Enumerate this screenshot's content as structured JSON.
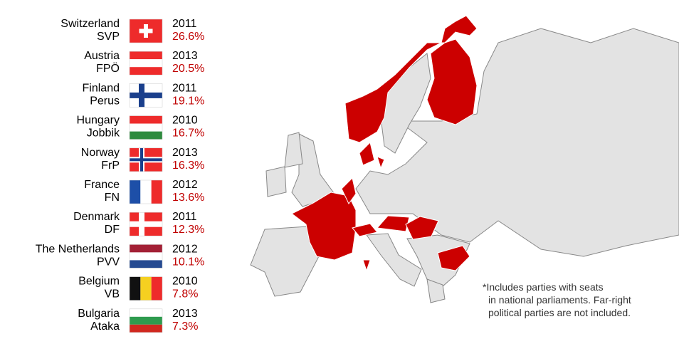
{
  "entries": [
    {
      "country": "Switzerland",
      "party": "SVP",
      "year": "2011",
      "share": "26.6%"
    },
    {
      "country": "Austria",
      "party": "FPÖ",
      "year": "2013",
      "share": "20.5%"
    },
    {
      "country": "Finland",
      "party": "Perus",
      "year": "2011",
      "share": "19.1%"
    },
    {
      "country": "Hungary",
      "party": "Jobbik",
      "year": "2010",
      "share": "16.7%"
    },
    {
      "country": "Norway",
      "party": "FrP",
      "year": "2013",
      "share": "16.3%"
    },
    {
      "country": "France",
      "party": "FN",
      "year": "2012",
      "share": "13.6%"
    },
    {
      "country": "Denmark",
      "party": "DF",
      "year": "2011",
      "share": "12.3%"
    },
    {
      "country": "The Netherlands",
      "party": "PVV",
      "year": "2012",
      "share": "10.1%"
    },
    {
      "country": "Belgium",
      "party": "VB",
      "year": "2010",
      "share": "7.8%"
    },
    {
      "country": "Bulgaria",
      "party": "Ataka",
      "year": "2013",
      "share": "7.3%"
    }
  ],
  "footnote": {
    "lines": [
      "*Includes parties with seats",
      "in national parliaments. Far-right",
      "political parties are not included."
    ]
  }
}
